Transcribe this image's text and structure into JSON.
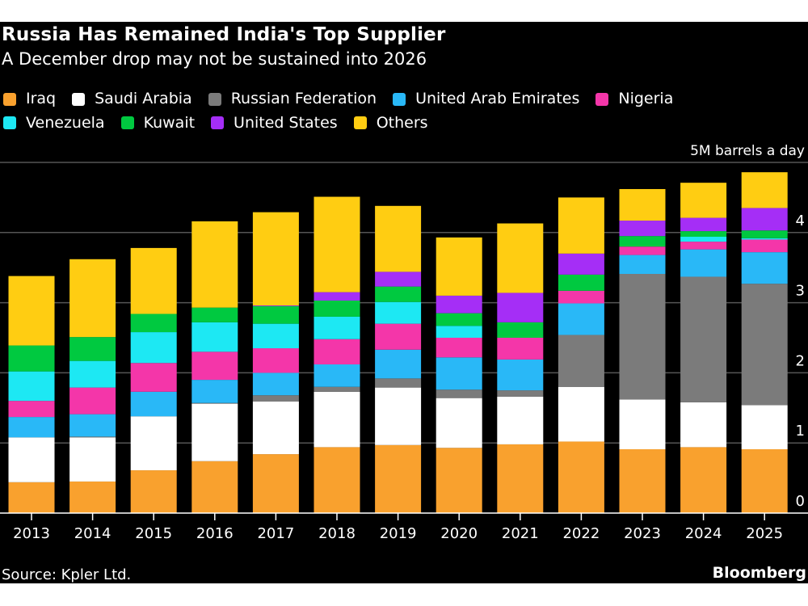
{
  "chart_data": {
    "type": "bar",
    "stacked": true,
    "title": "Russia Has Remained India's Top Supplier",
    "subtitle": "A December drop may not be sustained into 2026",
    "unit_label": "5M barrels a day",
    "ylim": [
      0,
      5
    ],
    "yticks": [
      "0",
      "1",
      "2",
      "3",
      "4"
    ],
    "grid": true,
    "legend_position": "top",
    "categories": [
      "2013",
      "2014",
      "2015",
      "2016",
      "2017",
      "2018",
      "2019",
      "2020",
      "2021",
      "2022",
      "2023",
      "2024",
      "2025"
    ],
    "series": [
      {
        "name": "Iraq",
        "color": "#f9a12e",
        "values": [
          0.44,
          0.45,
          0.61,
          0.74,
          0.84,
          0.94,
          0.97,
          0.93,
          0.98,
          1.02,
          0.91,
          0.94,
          0.91
        ]
      },
      {
        "name": "Saudi Arabia",
        "color": "#ffffff",
        "values": [
          0.64,
          0.63,
          0.77,
          0.82,
          0.75,
          0.79,
          0.82,
          0.71,
          0.68,
          0.78,
          0.71,
          0.64,
          0.63
        ]
      },
      {
        "name": "Russian Federation",
        "color": "#7b7b7b",
        "values": [
          0.0,
          0.01,
          0.0,
          0.01,
          0.09,
          0.07,
          0.13,
          0.12,
          0.09,
          0.74,
          1.79,
          1.79,
          1.73
        ]
      },
      {
        "name": "United Arab Emirates",
        "color": "#29b8f7",
        "values": [
          0.29,
          0.32,
          0.35,
          0.33,
          0.32,
          0.32,
          0.41,
          0.46,
          0.44,
          0.45,
          0.27,
          0.39,
          0.45
        ]
      },
      {
        "name": "Nigeria",
        "color": "#f436a9",
        "values": [
          0.23,
          0.38,
          0.41,
          0.4,
          0.35,
          0.36,
          0.37,
          0.28,
          0.31,
          0.18,
          0.12,
          0.11,
          0.18
        ]
      },
      {
        "name": "Venezuela",
        "color": "#1de8f3",
        "values": [
          0.42,
          0.38,
          0.44,
          0.42,
          0.35,
          0.32,
          0.31,
          0.17,
          0.0,
          0.0,
          0.0,
          0.07,
          0.02
        ]
      },
      {
        "name": "Kuwait",
        "color": "#00c940",
        "values": [
          0.37,
          0.34,
          0.26,
          0.21,
          0.25,
          0.23,
          0.22,
          0.18,
          0.22,
          0.23,
          0.15,
          0.08,
          0.11
        ]
      },
      {
        "name": "United States",
        "color": "#a52ef6",
        "values": [
          0.0,
          0.0,
          0.0,
          0.0,
          0.01,
          0.12,
          0.21,
          0.25,
          0.42,
          0.3,
          0.22,
          0.19,
          0.32
        ]
      },
      {
        "name": "Others",
        "color": "#ffcd12",
        "values": [
          0.99,
          1.11,
          0.94,
          1.23,
          1.33,
          1.36,
          0.94,
          0.83,
          0.99,
          0.8,
          0.45,
          0.5,
          0.51
        ]
      }
    ]
  },
  "footer": {
    "source": "Source: Kpler Ltd.",
    "brand": "Bloomberg"
  }
}
